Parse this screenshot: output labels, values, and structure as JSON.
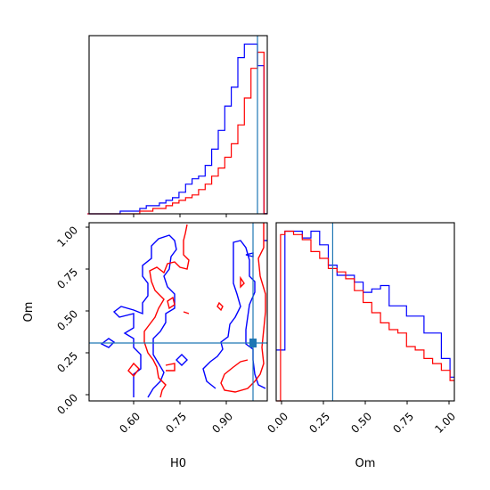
{
  "chart_data": [
    {
      "type": "histogram",
      "panel": "H0 marginal",
      "xlabel": "",
      "ylabel": "",
      "truth_line": 0.97,
      "series": [
        {
          "name": "",
          "color": "#0000ff",
          "edges": [
            0.45,
            0.47,
            0.49,
            0.51,
            0.53,
            0.55,
            0.57,
            0.59,
            0.61,
            0.63,
            0.65,
            0.67,
            0.69,
            0.71,
            0.73,
            0.75,
            0.77,
            0.79,
            0.81,
            0.83,
            0.85,
            0.87,
            0.89,
            0.91,
            0.93,
            0.95,
            0.97,
            0.99,
            1.0
          ],
          "counts": [
            0,
            0,
            0,
            0,
            0,
            1,
            1,
            1,
            2,
            3,
            3,
            4,
            5,
            6,
            8,
            11,
            13,
            14,
            18,
            24,
            31,
            40,
            47,
            58,
            63,
            63,
            55,
            0.1
          ]
        },
        {
          "name": "",
          "color": "#ff0000",
          "edges": [
            0.45,
            0.47,
            0.49,
            0.51,
            0.53,
            0.55,
            0.57,
            0.59,
            0.61,
            0.63,
            0.65,
            0.67,
            0.69,
            0.71,
            0.73,
            0.75,
            0.77,
            0.79,
            0.81,
            0.83,
            0.85,
            0.87,
            0.89,
            0.91,
            0.93,
            0.95,
            0.97,
            0.99,
            1.0
          ],
          "counts": [
            0,
            0,
            0,
            0,
            0,
            0,
            0,
            0,
            1,
            1,
            2,
            2,
            3,
            4,
            5,
            6,
            7,
            9,
            11,
            14,
            17,
            21,
            26,
            33,
            43,
            54,
            60,
            0
          ]
        }
      ]
    },
    {
      "type": "contour",
      "panel": "H0 vs Om",
      "xlabel": "H0",
      "ylabel": "Om",
      "xticks": [
        "0.60",
        "0.75",
        "0.90"
      ],
      "yticks": [
        "0.00",
        "0.25",
        "0.50",
        "0.75",
        "1.00"
      ],
      "truth": {
        "x": 0.97,
        "y": 0.3
      },
      "series": [
        {
          "name": "",
          "color": "#0000ff"
        },
        {
          "name": "",
          "color": "#ff0000"
        }
      ]
    },
    {
      "type": "histogram",
      "panel": "Om marginal",
      "xlabel": "Om",
      "ylabel": "",
      "xticks": [
        "0.00",
        "0.25",
        "0.50",
        "0.75",
        "1.00"
      ],
      "truth_line": 0.3,
      "series": [
        {
          "name": "",
          "color": "#0000ff",
          "edges": [
            -0.025,
            0.0,
            0.025,
            0.075,
            0.125,
            0.175,
            0.225,
            0.275,
            0.325,
            0.375,
            0.425,
            0.475,
            0.525,
            0.575,
            0.625,
            0.675,
            0.725,
            0.775,
            0.825,
            0.875,
            0.925,
            0.975,
            1.0
          ],
          "counts": [
            30,
            30,
            100,
            100,
            96,
            100,
            92,
            80,
            74,
            74,
            70,
            64,
            66,
            68,
            56,
            56,
            50,
            50,
            40,
            40,
            25,
            14
          ]
        },
        {
          "name": "",
          "color": "#ff0000",
          "edges": [
            -0.025,
            0.0,
            0.025,
            0.075,
            0.125,
            0.175,
            0.225,
            0.275,
            0.325,
            0.375,
            0.425,
            0.475,
            0.525,
            0.575,
            0.625,
            0.675,
            0.725,
            0.775,
            0.825,
            0.875,
            0.925,
            0.975,
            1.0
          ],
          "counts": [
            0,
            98,
            100,
            98,
            95,
            88,
            84,
            78,
            76,
            72,
            65,
            58,
            52,
            46,
            42,
            40,
            32,
            30,
            25,
            22,
            18,
            12
          ]
        }
      ]
    }
  ]
}
